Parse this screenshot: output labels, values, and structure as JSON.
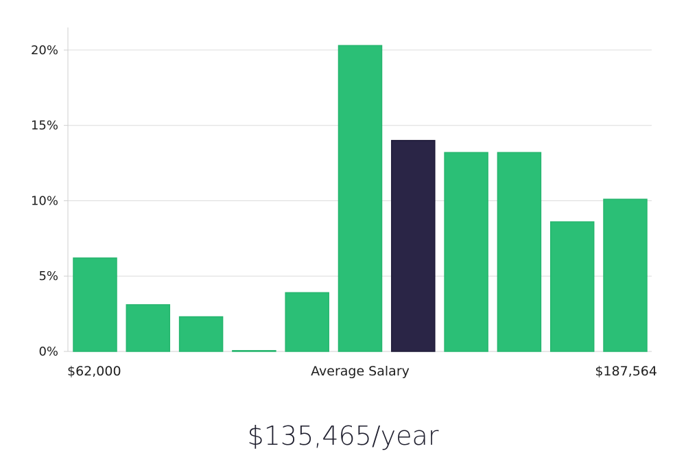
{
  "chart_data": {
    "type": "bar",
    "title": "",
    "xlabel": "Average Salary",
    "ylabel": "",
    "ylim": [
      0,
      21.5
    ],
    "y_ticks": [
      {
        "value": 0,
        "label": "0%"
      },
      {
        "value": 5,
        "label": "5%"
      },
      {
        "value": 10,
        "label": "10%"
      },
      {
        "value": 15,
        "label": "15%"
      },
      {
        "value": 20,
        "label": "20%"
      }
    ],
    "x_range_labels": {
      "min": "$62,000",
      "max": "$187,564"
    },
    "grid": true,
    "values": [
      6.2,
      3.1,
      2.3,
      0.05,
      3.9,
      20.3,
      14.0,
      13.2,
      13.2,
      8.6,
      10.1
    ],
    "highlight_index": 6,
    "colors": {
      "bar": "#2bbf76",
      "bar_stroke": "#26b56e",
      "highlight": "#2a2546",
      "grid": "#dcdcdc",
      "axis": "#cfcfcf"
    }
  },
  "summary": {
    "average_salary": "$135,465/year"
  }
}
